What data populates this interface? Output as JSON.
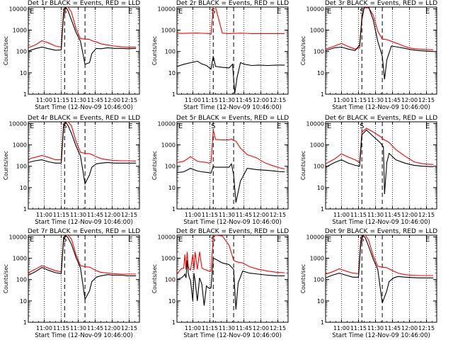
{
  "figure": {
    "panels": [
      {
        "title": "Det 1r  BLACK = Events, RED = LLD",
        "marker_letters": [
          "E",
          "S",
          "E"
        ]
      },
      {
        "title": "Det 2r  BLACK = Events, RED = LLD",
        "marker_letters": [
          "E",
          "S",
          "E"
        ]
      },
      {
        "title": "Det 3r  BLACK = Events, RED = LLD",
        "marker_letters": [
          "E",
          "S",
          "E"
        ]
      },
      {
        "title": "Det 4r  BLACK = Events, RED = LLD",
        "marker_letters": [
          "E",
          "S",
          "E"
        ]
      },
      {
        "title": "Det 5r  BLACK = Events, RED = LLD",
        "marker_letters": [
          "E",
          "S",
          "E"
        ]
      },
      {
        "title": "Det 6r  BLACK = Events, RED = LLD",
        "marker_letters": [
          "E",
          "S",
          "E"
        ]
      },
      {
        "title": "Det 7r  BLACK = Events, RED = LLD",
        "marker_letters": [
          "E",
          "S",
          "E"
        ]
      },
      {
        "title": "Det 8r  BLACK = Events, RED = LLD",
        "marker_letters": [
          "E",
          "S",
          "E"
        ]
      },
      {
        "title": "Det 9r  BLACK = Events, RED = LLD",
        "marker_letters": [
          "E",
          "S",
          "E"
        ]
      }
    ],
    "xlabel": "Start Time (12-Nov-09 10:46:00)",
    "ylabel": "Counts/sec",
    "x_tick_labels": [
      "11:00",
      "11:15",
      "11:30",
      "11:45",
      "12:00",
      "12:15"
    ],
    "y_tick_labels": [
      "1",
      "10",
      "100",
      "1000",
      "10000"
    ],
    "colors": {
      "events": "#000000",
      "lld": "#ff0000",
      "axis": "#000000"
    }
  },
  "chart_data": {
    "type": "line",
    "grid": false,
    "y_scale": "log",
    "x_unit": "minutes after 10:46:00",
    "x_tick_positions": [
      14,
      29,
      44,
      59,
      74,
      89
    ],
    "xlim": [
      0,
      98
    ],
    "ylim": [
      1,
      12000
    ],
    "dotted_lines_x": [
      14,
      29,
      44,
      59,
      74,
      89
    ],
    "dashed_lines_x": [
      32,
      50
    ],
    "series_names": [
      "Events",
      "LLD"
    ],
    "panels": [
      {
        "x": [
          0,
          6,
          12,
          18,
          24,
          29,
          31,
          33,
          35,
          38,
          42,
          46,
          50,
          54,
          56,
          60,
          64,
          70,
          76,
          82,
          88,
          95
        ],
        "events": [
          105,
          135,
          160,
          135,
          115,
          118,
          5000,
          12000,
          8000,
          3000,
          800,
          300,
          25,
          30,
          80,
          140,
          135,
          150,
          140,
          140,
          135,
          140
        ],
        "lld": [
          150,
          200,
          320,
          250,
          180,
          160,
          7000,
          12000,
          12000,
          7000,
          1200,
          400,
          380,
          370,
          320,
          280,
          230,
          200,
          180,
          165,
          160,
          160
        ]
      },
      {
        "x": [
          0,
          6,
          12,
          18,
          22,
          26,
          28,
          30,
          32,
          34,
          40,
          46,
          49,
          51,
          53,
          56,
          60,
          66,
          72,
          80,
          88,
          95
        ],
        "events": [
          20,
          25,
          30,
          35,
          26,
          22,
          18,
          15,
          60,
          20,
          18,
          17,
          25,
          1.1,
          6,
          30,
          25,
          22,
          23,
          22,
          23,
          23
        ],
        "lld": [
          700,
          705,
          720,
          730,
          710,
          700,
          690,
          650,
          12000,
          12000,
          720,
          690,
          700,
          700,
          710,
          720,
          710,
          690,
          690,
          690,
          690,
          690
        ]
      },
      {
        "x": [
          0,
          8,
          14,
          20,
          26,
          30,
          32,
          34,
          38,
          42,
          46,
          50,
          52,
          54,
          58,
          64,
          70,
          76,
          82,
          88,
          95
        ],
        "events": [
          110,
          150,
          160,
          130,
          110,
          200,
          4000,
          12000,
          12000,
          3000,
          300,
          60,
          5,
          40,
          180,
          160,
          140,
          120,
          110,
          105,
          100
        ],
        "lld": [
          130,
          180,
          240,
          170,
          130,
          150,
          3000,
          11000,
          11000,
          5000,
          900,
          380,
          370,
          360,
          300,
          230,
          170,
          140,
          130,
          125,
          120
        ]
      },
      {
        "x": [
          0,
          6,
          12,
          18,
          24,
          29,
          31,
          33,
          35,
          38,
          42,
          46,
          50,
          54,
          56,
          60,
          64,
          70,
          76,
          82,
          88,
          95
        ],
        "events": [
          150,
          180,
          200,
          160,
          140,
          140,
          6000,
          12000,
          8000,
          3500,
          900,
          300,
          15,
          40,
          90,
          130,
          140,
          150,
          140,
          140,
          140,
          140
        ],
        "lld": [
          220,
          260,
          320,
          260,
          200,
          200,
          8000,
          12000,
          12000,
          8000,
          1500,
          450,
          400,
          390,
          350,
          280,
          230,
          200,
          185,
          180,
          180,
          175
        ]
      },
      {
        "x": [
          0,
          6,
          12,
          18,
          22,
          26,
          28,
          30,
          32,
          34,
          40,
          46,
          48,
          50,
          52,
          56,
          62,
          70,
          78,
          86,
          92,
          95
        ],
        "events": [
          50,
          55,
          80,
          60,
          55,
          52,
          50,
          48,
          100,
          90,
          90,
          90,
          130,
          40,
          2,
          20,
          80,
          70,
          65,
          60,
          55,
          55
        ],
        "lld": [
          150,
          170,
          280,
          170,
          160,
          150,
          140,
          150,
          5000,
          1800,
          1700,
          1700,
          1900,
          1600,
          1500,
          700,
          350,
          250,
          140,
          100,
          80,
          75
        ]
      },
      {
        "x": [
          0,
          8,
          14,
          20,
          26,
          30,
          32,
          36,
          42,
          48,
          51,
          52,
          54,
          56,
          62,
          70,
          78,
          86,
          95
        ],
        "events": [
          90,
          150,
          200,
          140,
          110,
          100,
          3000,
          5000,
          2500,
          1300,
          800,
          5,
          150,
          400,
          200,
          140,
          110,
          100,
          95
        ],
        "lld": [
          130,
          220,
          380,
          270,
          200,
          150,
          4000,
          6000,
          4000,
          2500,
          1800,
          1700,
          1500,
          1300,
          600,
          300,
          160,
          130,
          120
        ]
      },
      {
        "x": [
          0,
          6,
          12,
          18,
          24,
          29,
          31,
          33,
          35,
          38,
          42,
          46,
          50,
          54,
          56,
          60,
          64,
          70,
          76,
          82,
          88,
          95
        ],
        "events": [
          160,
          230,
          370,
          270,
          210,
          190,
          7000,
          12000,
          9000,
          4500,
          1100,
          350,
          12,
          30,
          80,
          130,
          150,
          170,
          160,
          160,
          150,
          150
        ],
        "lld": [
          210,
          300,
          450,
          340,
          260,
          230,
          8000,
          12000,
          12000,
          8000,
          1500,
          450,
          400,
          380,
          340,
          260,
          220,
          200,
          190,
          180,
          180,
          180
        ]
      },
      {
        "x": [
          0,
          2,
          4,
          6,
          7,
          8,
          9,
          10,
          11,
          12,
          14,
          15,
          16,
          18,
          20,
          22,
          24,
          26,
          28,
          30,
          32,
          34,
          40,
          46,
          50,
          52,
          54,
          58,
          64,
          72,
          80,
          88,
          95
        ],
        "events": [
          100,
          110,
          120,
          150,
          180,
          120,
          800,
          200,
          120,
          90,
          10,
          200,
          90,
          10,
          120,
          60,
          6,
          50,
          40,
          40,
          1000,
          900,
          600,
          500,
          300,
          4,
          70,
          250,
          200,
          180,
          160,
          150,
          150
        ],
        "lld": [
          180,
          250,
          320,
          350,
          1500,
          300,
          2000,
          400,
          300,
          280,
          1500,
          280,
          2000,
          300,
          2000,
          350,
          300,
          280,
          250,
          250,
          10000,
          12000,
          11000,
          4000,
          800,
          700,
          650,
          600,
          400,
          300,
          250,
          220,
          210
        ]
      },
      {
        "x": [
          0,
          6,
          12,
          18,
          24,
          29,
          31,
          33,
          35,
          38,
          42,
          46,
          50,
          54,
          56,
          60,
          64,
          70,
          76,
          82,
          88,
          95
        ],
        "events": [
          120,
          160,
          200,
          160,
          130,
          130,
          5000,
          12000,
          9000,
          3500,
          900,
          300,
          8,
          30,
          80,
          120,
          140,
          130,
          125,
          120,
          120,
          120
        ],
        "lld": [
          180,
          230,
          320,
          250,
          200,
          190,
          7000,
          12000,
          12000,
          7000,
          1300,
          420,
          380,
          360,
          320,
          250,
          200,
          170,
          160,
          155,
          155,
          155
        ]
      }
    ]
  }
}
